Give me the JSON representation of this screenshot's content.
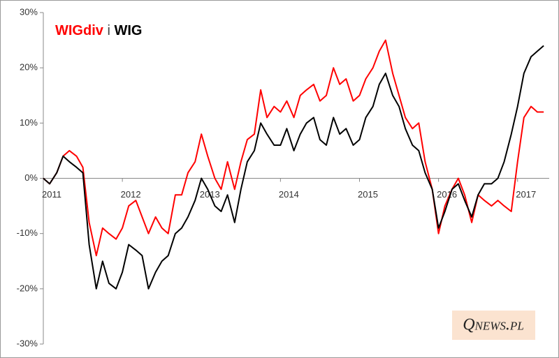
{
  "chart_data": {
    "type": "line",
    "legend_joiner": "i",
    "watermark": "Qnews.pl",
    "x": [
      2011.0,
      2011.08,
      2011.17,
      2011.25,
      2011.33,
      2011.42,
      2011.5,
      2011.58,
      2011.67,
      2011.75,
      2011.83,
      2011.92,
      2012.0,
      2012.08,
      2012.17,
      2012.25,
      2012.33,
      2012.42,
      2012.5,
      2012.58,
      2012.67,
      2012.75,
      2012.83,
      2012.92,
      2013.0,
      2013.08,
      2013.17,
      2013.25,
      2013.33,
      2013.42,
      2013.5,
      2013.58,
      2013.67,
      2013.75,
      2013.83,
      2013.92,
      2014.0,
      2014.08,
      2014.17,
      2014.25,
      2014.33,
      2014.42,
      2014.5,
      2014.58,
      2014.67,
      2014.75,
      2014.83,
      2014.92,
      2015.0,
      2015.08,
      2015.17,
      2015.25,
      2015.33,
      2015.42,
      2015.5,
      2015.58,
      2015.67,
      2015.75,
      2015.83,
      2015.92,
      2016.0,
      2016.08,
      2016.17,
      2016.25,
      2016.33,
      2016.42,
      2016.5,
      2016.58,
      2016.67,
      2016.75,
      2016.83,
      2016.92,
      2017.0,
      2017.08,
      2017.17,
      2017.25,
      2017.33
    ],
    "series": [
      {
        "name": "WIGdiv",
        "color": "#ff0000",
        "values": [
          0,
          -1,
          1,
          4,
          5,
          4,
          2,
          -8,
          -14,
          -9,
          -10,
          -11,
          -9,
          -5,
          -4,
          -7,
          -10,
          -7,
          -9,
          -10,
          -3,
          -3,
          1,
          3,
          8,
          4,
          0,
          -2,
          3,
          -2,
          3,
          7,
          8,
          16,
          11,
          13,
          12,
          14,
          11,
          15,
          16,
          17,
          14,
          15,
          20,
          17,
          18,
          14,
          15,
          18,
          20,
          23,
          25,
          19,
          15,
          11,
          9,
          10,
          3,
          -2,
          -10,
          -5,
          -2,
          0,
          -3,
          -8,
          -3,
          -4,
          -5,
          -4,
          -5,
          -6,
          3,
          11,
          13,
          12,
          12
        ]
      },
      {
        "name": "WIG",
        "color": "#000000",
        "values": [
          0,
          -1,
          1,
          4,
          3,
          2,
          1,
          -12,
          -20,
          -15,
          -19,
          -20,
          -17,
          -12,
          -13,
          -14,
          -20,
          -17,
          -15,
          -14,
          -10,
          -9,
          -7,
          -4,
          0,
          -2,
          -5,
          -6,
          -3,
          -8,
          -2,
          3,
          5,
          10,
          8,
          6,
          6,
          9,
          5,
          8,
          10,
          11,
          7,
          6,
          11,
          8,
          9,
          6,
          7,
          11,
          13,
          17,
          19,
          15,
          13,
          9,
          6,
          5,
          1,
          -2,
          -9,
          -6,
          -2,
          -1,
          -4,
          -7,
          -3,
          -1,
          -1,
          0,
          3,
          8,
          13,
          19,
          22,
          23,
          24
        ]
      }
    ],
    "xlim": [
      2011,
      2017.4
    ],
    "xticks": [
      2011,
      2012,
      2013,
      2014,
      2015,
      2016,
      2017
    ],
    "ylim": [
      -30,
      30
    ],
    "yticks": [
      {
        "value": -30,
        "label": "-30%"
      },
      {
        "value": -20,
        "label": "-20%"
      },
      {
        "value": -10,
        "label": "-10%"
      },
      {
        "value": 0,
        "label": "0%"
      },
      {
        "value": 10,
        "label": "10%"
      },
      {
        "value": 20,
        "label": "20%"
      },
      {
        "value": 30,
        "label": "30%"
      }
    ],
    "grid": false
  }
}
